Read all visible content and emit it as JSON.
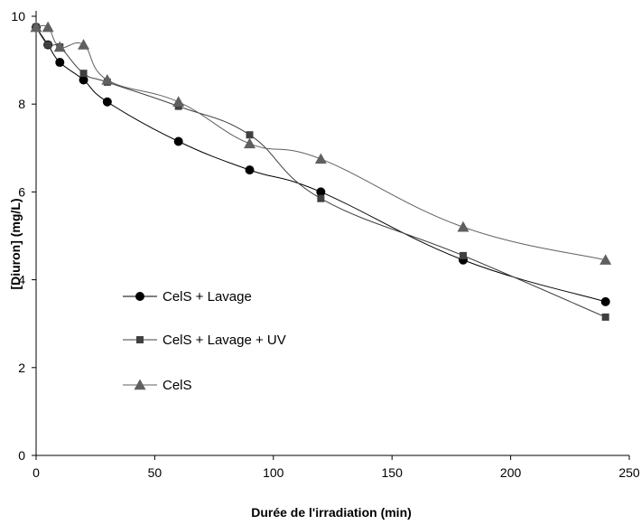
{
  "chart_data": {
    "type": "line",
    "title": "",
    "xlabel": "Durée de l'irradiation (min)",
    "ylabel": "[Diuron] (mg/L)",
    "xlim": [
      0,
      250
    ],
    "ylim": [
      0,
      10
    ],
    "xticks": [
      0,
      50,
      100,
      150,
      200,
      250
    ],
    "yticks": [
      0,
      2,
      4,
      6,
      8,
      10
    ],
    "grid": false,
    "legend_position": "left",
    "series": [
      {
        "name": "CelS + Lavage",
        "marker": "circle",
        "color": "#000000",
        "x": [
          0,
          5,
          10,
          20,
          30,
          60,
          90,
          120,
          180,
          240
        ],
        "y": [
          9.75,
          9.35,
          8.95,
          8.55,
          8.05,
          7.15,
          6.5,
          6.0,
          4.45,
          3.5
        ]
      },
      {
        "name": "CelS + Lavage + UV",
        "marker": "square",
        "color": "#404040",
        "x": [
          0,
          5,
          10,
          20,
          30,
          60,
          90,
          120,
          180,
          240
        ],
        "y": [
          9.75,
          9.35,
          9.3,
          8.7,
          8.5,
          7.95,
          7.3,
          5.85,
          4.55,
          3.15
        ]
      },
      {
        "name": "CelS",
        "marker": "triangle",
        "color": "#606060",
        "x": [
          0,
          5,
          10,
          20,
          30,
          60,
          90,
          120,
          180,
          240
        ],
        "y": [
          9.75,
          9.75,
          9.3,
          9.35,
          8.55,
          8.05,
          7.1,
          6.75,
          5.2,
          4.45
        ]
      }
    ]
  }
}
